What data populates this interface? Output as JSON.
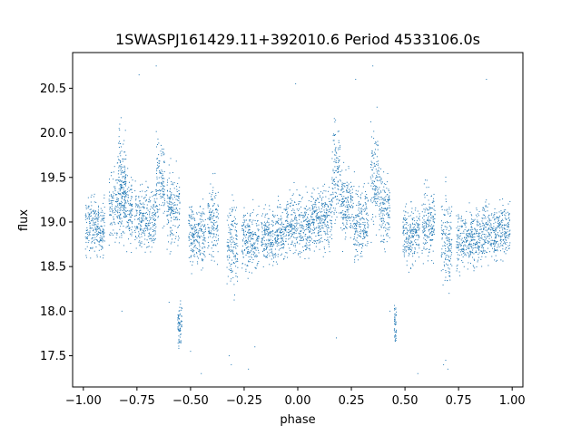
{
  "chart_data": {
    "type": "scatter",
    "title": "1SWASPJ161429.11+392010.6 Period 4533106.0s",
    "xlabel": "phase",
    "ylabel": "flux",
    "xlim": [
      -1.05,
      1.05
    ],
    "ylim": [
      17.15,
      20.9
    ],
    "xticks": [
      -1.0,
      -0.75,
      -0.5,
      -0.25,
      0.0,
      0.25,
      0.5,
      0.75,
      1.0
    ],
    "xtick_labels": [
      "−1.00",
      "−0.75",
      "−0.50",
      "−0.25",
      "0.00",
      "0.25",
      "0.50",
      "0.75",
      "1.00"
    ],
    "yticks": [
      17.5,
      18.0,
      18.5,
      19.0,
      19.5,
      20.0,
      20.5
    ],
    "ytick_labels": [
      "17.5",
      "18.0",
      "18.5",
      "19.0",
      "19.5",
      "20.0",
      "20.5"
    ],
    "grid": false,
    "marker_color": "#1f77b4",
    "series": [
      {
        "name": "",
        "clusters": [
          {
            "x": [
              -0.99,
              -0.9
            ],
            "y_center": 18.95,
            "y_spread": 0.28
          },
          {
            "x": [
              -0.88,
              -0.77
            ],
            "y_center": 19.15,
            "y_spread": 0.35
          },
          {
            "x": [
              -0.84,
              -0.8
            ],
            "y_center": 19.55,
            "y_spread": 0.45
          },
          {
            "x": [
              -0.76,
              -0.66
            ],
            "y_center": 19.05,
            "y_spread": 0.3
          },
          {
            "x": [
              -0.66,
              -0.62
            ],
            "y_center": 19.45,
            "y_spread": 0.45
          },
          {
            "x": [
              -0.61,
              -0.55
            ],
            "y_center": 19.15,
            "y_spread": 0.35
          },
          {
            "x": [
              -0.56,
              -0.54
            ],
            "y_center": 17.85,
            "y_spread": 0.2
          },
          {
            "x": [
              -0.51,
              -0.43
            ],
            "y_center": 18.85,
            "y_spread": 0.3
          },
          {
            "x": [
              -0.42,
              -0.37
            ],
            "y_center": 19.0,
            "y_spread": 0.35
          },
          {
            "x": [
              -0.33,
              -0.28
            ],
            "y_center": 18.75,
            "y_spread": 0.45
          },
          {
            "x": [
              -0.26,
              -0.18
            ],
            "y_center": 18.8,
            "y_spread": 0.3
          },
          {
            "x": [
              -0.17,
              -0.06
            ],
            "y_center": 18.85,
            "y_spread": 0.28
          },
          {
            "x": [
              -0.06,
              0.06
            ],
            "y_center": 18.95,
            "y_spread": 0.3
          },
          {
            "x": [
              0.06,
              0.16
            ],
            "y_center": 19.05,
            "y_spread": 0.3
          },
          {
            "x": [
              0.16,
              0.2
            ],
            "y_center": 19.55,
            "y_spread": 0.45
          },
          {
            "x": [
              0.2,
              0.26
            ],
            "y_center": 19.2,
            "y_spread": 0.35
          },
          {
            "x": [
              0.26,
              0.33
            ],
            "y_center": 19.0,
            "y_spread": 0.35
          },
          {
            "x": [
              0.34,
              0.38
            ],
            "y_center": 19.45,
            "y_spread": 0.5
          },
          {
            "x": [
              0.38,
              0.43
            ],
            "y_center": 19.15,
            "y_spread": 0.35
          },
          {
            "x": [
              0.45,
              0.46
            ],
            "y_center": 17.85,
            "y_spread": 0.2
          },
          {
            "x": [
              0.49,
              0.57
            ],
            "y_center": 18.85,
            "y_spread": 0.3
          },
          {
            "x": [
              0.58,
              0.64
            ],
            "y_center": 19.0,
            "y_spread": 0.35
          },
          {
            "x": [
              0.67,
              0.72
            ],
            "y_center": 18.8,
            "y_spread": 0.45
          },
          {
            "x": [
              0.74,
              0.86
            ],
            "y_center": 18.8,
            "y_spread": 0.28
          },
          {
            "x": [
              0.86,
              0.99
            ],
            "y_center": 18.9,
            "y_spread": 0.28
          }
        ],
        "outliers": [
          {
            "x": -0.6,
            "y": 18.1
          },
          {
            "x": -0.32,
            "y": 17.5
          },
          {
            "x": -0.31,
            "y": 17.4
          },
          {
            "x": -0.45,
            "y": 17.3
          },
          {
            "x": -0.23,
            "y": 17.35
          },
          {
            "x": 0.69,
            "y": 17.45
          },
          {
            "x": 0.68,
            "y": 17.4
          },
          {
            "x": 0.7,
            "y": 17.35
          },
          {
            "x": 0.56,
            "y": 17.3
          },
          {
            "x": 0.88,
            "y": 20.6
          },
          {
            "x": -0.66,
            "y": 20.75
          },
          {
            "x": 0.35,
            "y": 20.75
          },
          {
            "x": -0.74,
            "y": 20.65
          },
          {
            "x": 0.27,
            "y": 20.6
          },
          {
            "x": -0.01,
            "y": 20.55
          },
          {
            "x": -0.82,
            "y": 18.0
          },
          {
            "x": 0.18,
            "y": 17.7
          },
          {
            "x": -0.5,
            "y": 17.55
          },
          {
            "x": 0.43,
            "y": 18.0
          },
          {
            "x": -0.2,
            "y": 17.6
          }
        ]
      }
    ]
  }
}
